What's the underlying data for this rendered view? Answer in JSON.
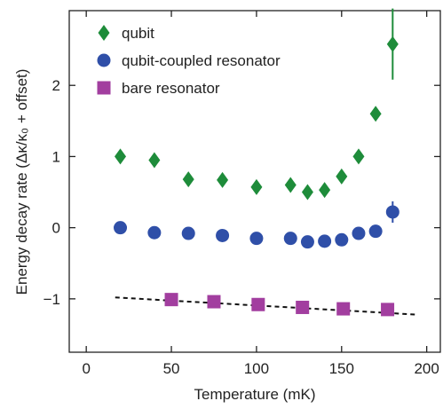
{
  "chart_data": {
    "type": "scatter",
    "xlabel": "Temperature (mK)",
    "ylabel": "Energy decay rate (Δκ/κ₀ + offset)",
    "xlim": [
      -10,
      208
    ],
    "ylim": [
      -1.75,
      3.05
    ],
    "x_ticks": [
      0,
      50,
      100,
      150,
      200
    ],
    "y_ticks": [
      -1,
      0,
      1,
      2
    ],
    "grid": false,
    "legend_position": "top-left",
    "series": [
      {
        "name": "qubit",
        "marker": "diamond",
        "color": "#1e8c3a",
        "points": [
          {
            "x": 20,
            "y": 1.0
          },
          {
            "x": 40,
            "y": 0.95
          },
          {
            "x": 60,
            "y": 0.68
          },
          {
            "x": 80,
            "y": 0.67
          },
          {
            "x": 100,
            "y": 0.57
          },
          {
            "x": 120,
            "y": 0.6
          },
          {
            "x": 130,
            "y": 0.5
          },
          {
            "x": 140,
            "y": 0.53
          },
          {
            "x": 150,
            "y": 0.72
          },
          {
            "x": 160,
            "y": 1.0
          },
          {
            "x": 170,
            "y": 1.6
          },
          {
            "x": 180,
            "y": 2.58,
            "err": 0.5
          }
        ]
      },
      {
        "name": "qubit-coupled resonator",
        "marker": "circle",
        "color": "#2f4fa8",
        "points": [
          {
            "x": 20,
            "y": 0.0
          },
          {
            "x": 40,
            "y": -0.07
          },
          {
            "x": 60,
            "y": -0.08
          },
          {
            "x": 80,
            "y": -0.11
          },
          {
            "x": 100,
            "y": -0.15
          },
          {
            "x": 120,
            "y": -0.15
          },
          {
            "x": 130,
            "y": -0.2
          },
          {
            "x": 140,
            "y": -0.19
          },
          {
            "x": 150,
            "y": -0.17
          },
          {
            "x": 160,
            "y": -0.08
          },
          {
            "x": 170,
            "y": -0.05
          },
          {
            "x": 180,
            "y": 0.22,
            "err": 0.15
          }
        ]
      },
      {
        "name": "bare resonator",
        "marker": "square",
        "color": "#a23e9f",
        "points": [
          {
            "x": 50,
            "y": -1.01
          },
          {
            "x": 75,
            "y": -1.04
          },
          {
            "x": 101,
            "y": -1.08
          },
          {
            "x": 127,
            "y": -1.12
          },
          {
            "x": 151,
            "y": -1.14
          },
          {
            "x": 177,
            "y": -1.15
          }
        ]
      }
    ],
    "fit_line": {
      "style": "dashed",
      "color": "#000000",
      "x": [
        17,
        193
      ],
      "y": [
        -0.98,
        -1.22
      ]
    }
  }
}
